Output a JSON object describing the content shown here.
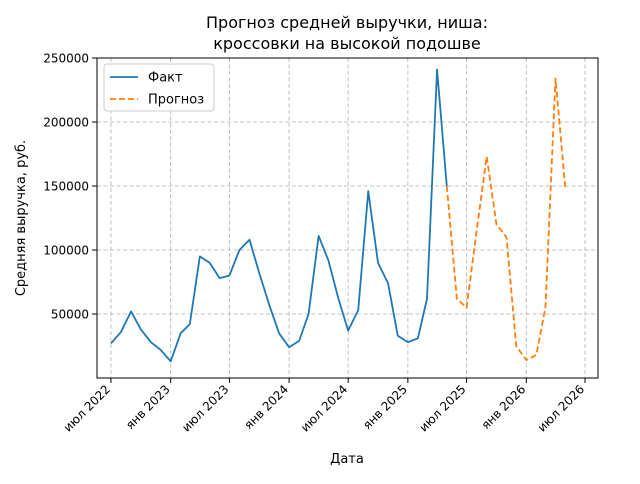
{
  "chart_data": {
    "type": "line",
    "title": "Прогноз средней выручки, ниша:\nкроссовки на высокой подошве",
    "title_lines": [
      "Прогноз средней выручки, ниша:",
      "кроссовки на высокой подошве"
    ],
    "xlabel": "Дата",
    "ylabel": "Средняя выручка, руб.",
    "grid": true,
    "grid_style": "dashed",
    "legend_position": "top-left",
    "x_type": "date",
    "xlim": [
      "2022-05-19",
      "2026-08-10"
    ],
    "ylim": [
      0,
      250000
    ],
    "x_ticks": [
      {
        "date": "2022-07-01",
        "label": "июл 2022"
      },
      {
        "date": "2023-01-01",
        "label": "янв 2023"
      },
      {
        "date": "2023-07-01",
        "label": "июл 2023"
      },
      {
        "date": "2024-01-01",
        "label": "янв 2024"
      },
      {
        "date": "2024-07-01",
        "label": "июл 2024"
      },
      {
        "date": "2025-01-01",
        "label": "янв 2025"
      },
      {
        "date": "2025-07-01",
        "label": "июл 2025"
      },
      {
        "date": "2026-01-01",
        "label": "янв 2026"
      },
      {
        "date": "2026-07-01",
        "label": "июл 2026"
      }
    ],
    "y_ticks": [
      {
        "value": 50000,
        "label": "50000"
      },
      {
        "value": 100000,
        "label": "100000"
      },
      {
        "value": 150000,
        "label": "150000"
      },
      {
        "value": 200000,
        "label": "200000"
      },
      {
        "value": 250000,
        "label": "250000"
      }
    ],
    "series": [
      {
        "name": "Факт",
        "color": "#1f77b4",
        "style": "solid",
        "x": [
          "2022-07-01",
          "2022-08-01",
          "2022-09-01",
          "2022-10-01",
          "2022-11-01",
          "2022-12-01",
          "2023-01-01",
          "2023-02-01",
          "2023-03-01",
          "2023-04-01",
          "2023-05-01",
          "2023-06-01",
          "2023-07-01",
          "2023-08-01",
          "2023-09-01",
          "2023-10-01",
          "2023-11-01",
          "2023-12-01",
          "2024-01-01",
          "2024-02-01",
          "2024-03-01",
          "2024-04-01",
          "2024-05-01",
          "2024-06-01",
          "2024-07-01",
          "2024-08-01",
          "2024-09-01",
          "2024-10-01",
          "2024-11-01",
          "2024-12-01",
          "2025-01-01",
          "2025-02-01",
          "2025-03-01",
          "2025-04-01",
          "2025-05-01"
        ],
        "y": [
          27000,
          36000,
          52000,
          38000,
          28000,
          22000,
          13000,
          35000,
          42000,
          95000,
          90000,
          78000,
          80000,
          100000,
          108000,
          82000,
          57000,
          35000,
          24000,
          29000,
          50000,
          111000,
          92000,
          62000,
          37000,
          53000,
          146000,
          90000,
          74000,
          33000,
          28000,
          31000,
          62000,
          241000,
          150000
        ]
      },
      {
        "name": "Прогноз",
        "color": "#ff7f0e",
        "style": "dashed",
        "x": [
          "2025-05-01",
          "2025-06-01",
          "2025-07-01",
          "2025-08-01",
          "2025-09-01",
          "2025-10-01",
          "2025-11-01",
          "2025-12-01",
          "2026-01-01",
          "2026-02-01",
          "2026-03-01",
          "2026-04-01",
          "2026-05-01"
        ],
        "y": [
          150000,
          62000,
          55000,
          115000,
          173000,
          120000,
          110000,
          25000,
          14000,
          18000,
          55000,
          234000,
          149000
        ]
      }
    ]
  }
}
